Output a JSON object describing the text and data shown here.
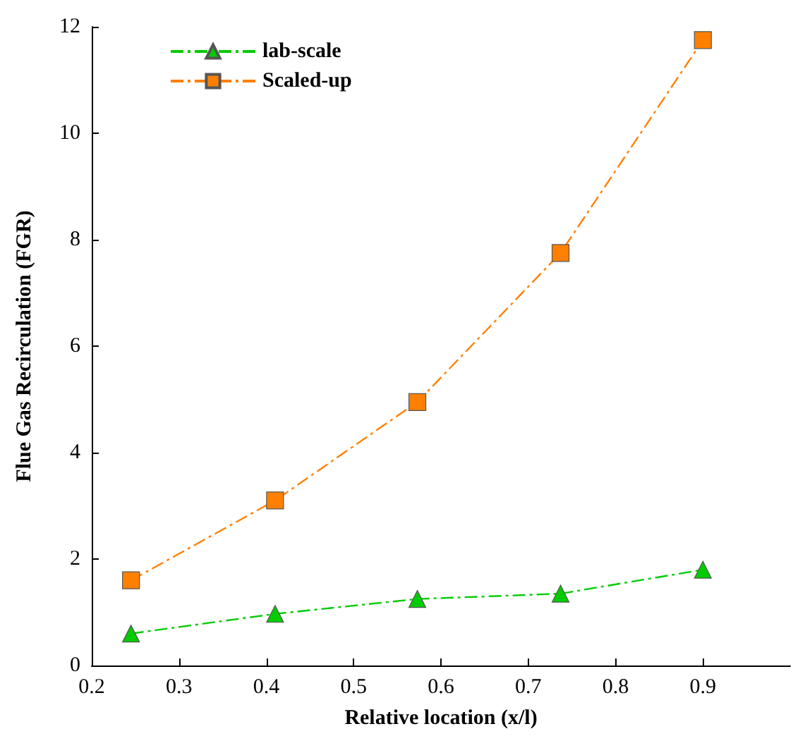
{
  "chart_data": {
    "type": "line",
    "xlabel": "Relative location (x/l)",
    "ylabel": "Flue Gas Recirculation (FGR)",
    "xlim": [
      0.2,
      1.0
    ],
    "xticks": [
      0.2,
      0.3,
      0.4,
      0.5,
      0.6,
      0.7,
      0.8,
      0.9
    ],
    "ylim": [
      0,
      12
    ],
    "yticks": [
      0,
      2,
      4,
      6,
      8,
      10,
      12
    ],
    "grid": false,
    "legend": "top left",
    "line_style": "dashed",
    "series": [
      {
        "name": "lab-scale",
        "color": "#00cc00",
        "marker": "triangle",
        "x": [
          0.245,
          0.41,
          0.573,
          0.737,
          0.9
        ],
        "values": [
          0.6,
          0.97,
          1.25,
          1.35,
          1.8
        ]
      },
      {
        "name": "Scaled-up",
        "color": "#ff8000",
        "marker": "square",
        "x": [
          0.245,
          0.41,
          0.573,
          0.737,
          0.9
        ],
        "values": [
          1.6,
          3.1,
          4.95,
          7.75,
          11.75
        ]
      }
    ]
  }
}
